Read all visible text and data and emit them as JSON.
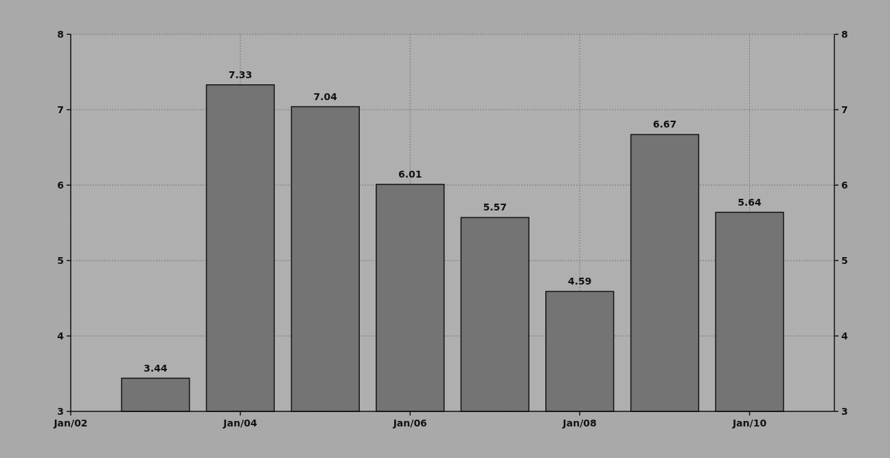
{
  "chart_data": {
    "type": "bar",
    "x": [
      "2003-01",
      "2004-01",
      "2005-01",
      "2006-01",
      "2007-01",
      "2008-01",
      "2009-01",
      "2010-01"
    ],
    "values": [
      3.44,
      7.33,
      7.04,
      6.01,
      5.57,
      4.59,
      6.67,
      5.64
    ],
    "color": "#747474",
    "data_labels": true,
    "xlim": [
      "2002-01",
      "2011-01"
    ],
    "xticks": [
      {
        "value": "2002-01",
        "label": "Jan/02"
      },
      {
        "value": "2004-01",
        "label": "Jan/04"
      },
      {
        "value": "2006-01",
        "label": "Jan/06"
      },
      {
        "value": "2008-01",
        "label": "Jan/08"
      },
      {
        "value": "2010-01",
        "label": "Jan/10"
      }
    ],
    "ylim": [
      3,
      8
    ],
    "yticks": [
      3,
      4,
      5,
      6,
      7,
      8
    ],
    "y2lim": [
      3,
      8
    ],
    "y2ticks": [
      3,
      4,
      5,
      6,
      7,
      8
    ],
    "grid": true
  }
}
